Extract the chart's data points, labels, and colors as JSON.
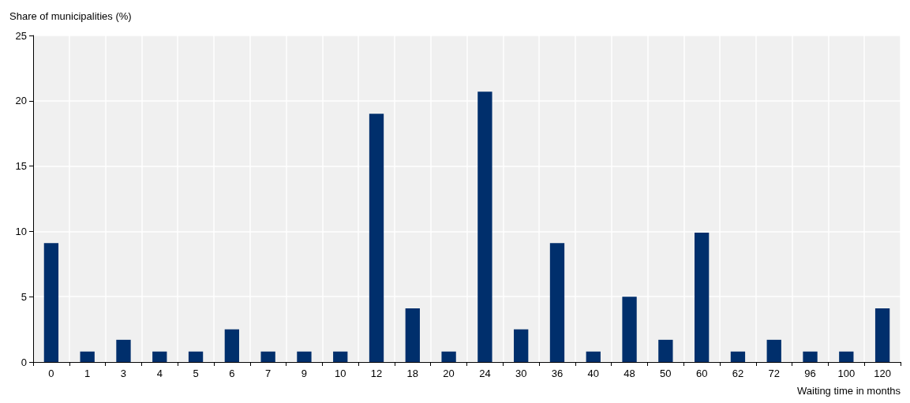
{
  "chart_data": {
    "type": "bar",
    "xlabel": "Waiting time in months",
    "ylabel": "Share of municipalities (%)",
    "categories": [
      "0",
      "1",
      "3",
      "4",
      "5",
      "6",
      "7",
      "9",
      "10",
      "12",
      "18",
      "20",
      "24",
      "30",
      "36",
      "40",
      "48",
      "50",
      "60",
      "62",
      "72",
      "96",
      "100",
      "120"
    ],
    "values": [
      9.1,
      0.8,
      1.7,
      0.8,
      0.8,
      2.5,
      0.8,
      0.8,
      0.8,
      19.0,
      4.1,
      0.8,
      20.7,
      2.5,
      9.1,
      0.8,
      5.0,
      1.7,
      9.9,
      0.8,
      1.7,
      0.8,
      0.8,
      4.1
    ],
    "color": "#002f6c",
    "ylim": [
      0,
      25
    ],
    "yticks": [
      0,
      5,
      10,
      15,
      20,
      25
    ],
    "grid": true
  }
}
